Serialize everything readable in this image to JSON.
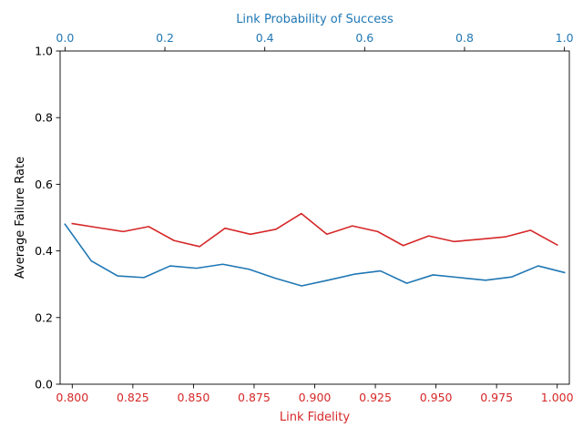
{
  "chart_data": {
    "type": "line",
    "title": "",
    "xlabel": "Link Fidelity",
    "ylabel": "Average Failure Rate",
    "x2label": "Link Probability of Success",
    "xlim": [
      0.795,
      1.005
    ],
    "ylim": [
      0.0,
      1.0
    ],
    "x2lim": [
      -0.0098,
      1.0098
    ],
    "x_ticks": [
      "0.800",
      "0.825",
      "0.850",
      "0.875",
      "0.900",
      "0.925",
      "0.950",
      "0.975",
      "1.000"
    ],
    "x2_ticks": [
      "0.0",
      "0.2",
      "0.4",
      "0.6",
      "0.8",
      "1.0"
    ],
    "y_ticks": [
      "0.0",
      "0.2",
      "0.4",
      "0.6",
      "0.8",
      "1.0"
    ],
    "grid": false,
    "legend": "none",
    "colors": {
      "fidelity": "#d62728",
      "probability": "#1f77b4",
      "axis": "#000000"
    },
    "series": [
      {
        "axis": "bottom",
        "color": "#d62728",
        "x": [
          0.8,
          0.8105,
          0.821,
          0.8315,
          0.842,
          0.8525,
          0.863,
          0.8735,
          0.884,
          0.8945,
          0.905,
          0.9155,
          0.926,
          0.9365,
          0.947,
          0.9575,
          0.968,
          0.9785,
          0.989,
          1.0
        ],
        "values": [
          0.482,
          0.47,
          0.458,
          0.473,
          0.431,
          0.413,
          0.468,
          0.45,
          0.465,
          0.512,
          0.45,
          0.475,
          0.458,
          0.416,
          0.445,
          0.428,
          0.435,
          0.442,
          0.462,
          0.418
        ]
      },
      {
        "axis": "top",
        "color": "#1f77b4",
        "x": [
          0.0,
          0.0526,
          0.1053,
          0.1579,
          0.2105,
          0.2632,
          0.3158,
          0.3684,
          0.4211,
          0.4737,
          0.5263,
          0.5789,
          0.6316,
          0.6842,
          0.7368,
          0.7895,
          0.8421,
          0.8947,
          0.9474,
          1.0
        ],
        "values": [
          0.48,
          0.37,
          0.325,
          0.32,
          0.355,
          0.348,
          0.36,
          0.345,
          0.318,
          0.295,
          0.312,
          0.33,
          0.34,
          0.303,
          0.328,
          0.32,
          0.312,
          0.322,
          0.355,
          0.335
        ]
      }
    ]
  }
}
